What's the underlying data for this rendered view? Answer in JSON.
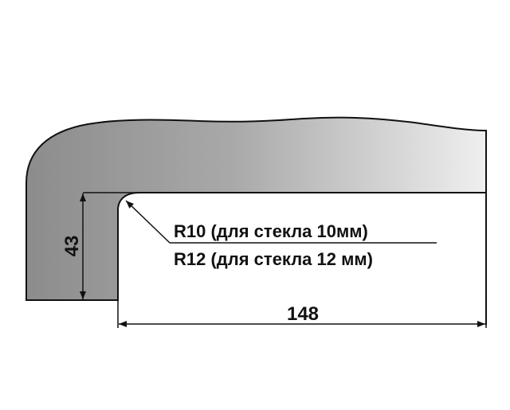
{
  "dimensions": {
    "height_label": "43",
    "width_label": "148"
  },
  "radius_note": {
    "line1": "R10 (для стекла 10мм)",
    "line2": "R12 (для стекла 12 мм)"
  },
  "colors": {
    "profile_fill_dark": "#8f8f8f",
    "profile_fill_light": "#eeeeee",
    "outline": "#111111",
    "background": "#ffffff"
  }
}
